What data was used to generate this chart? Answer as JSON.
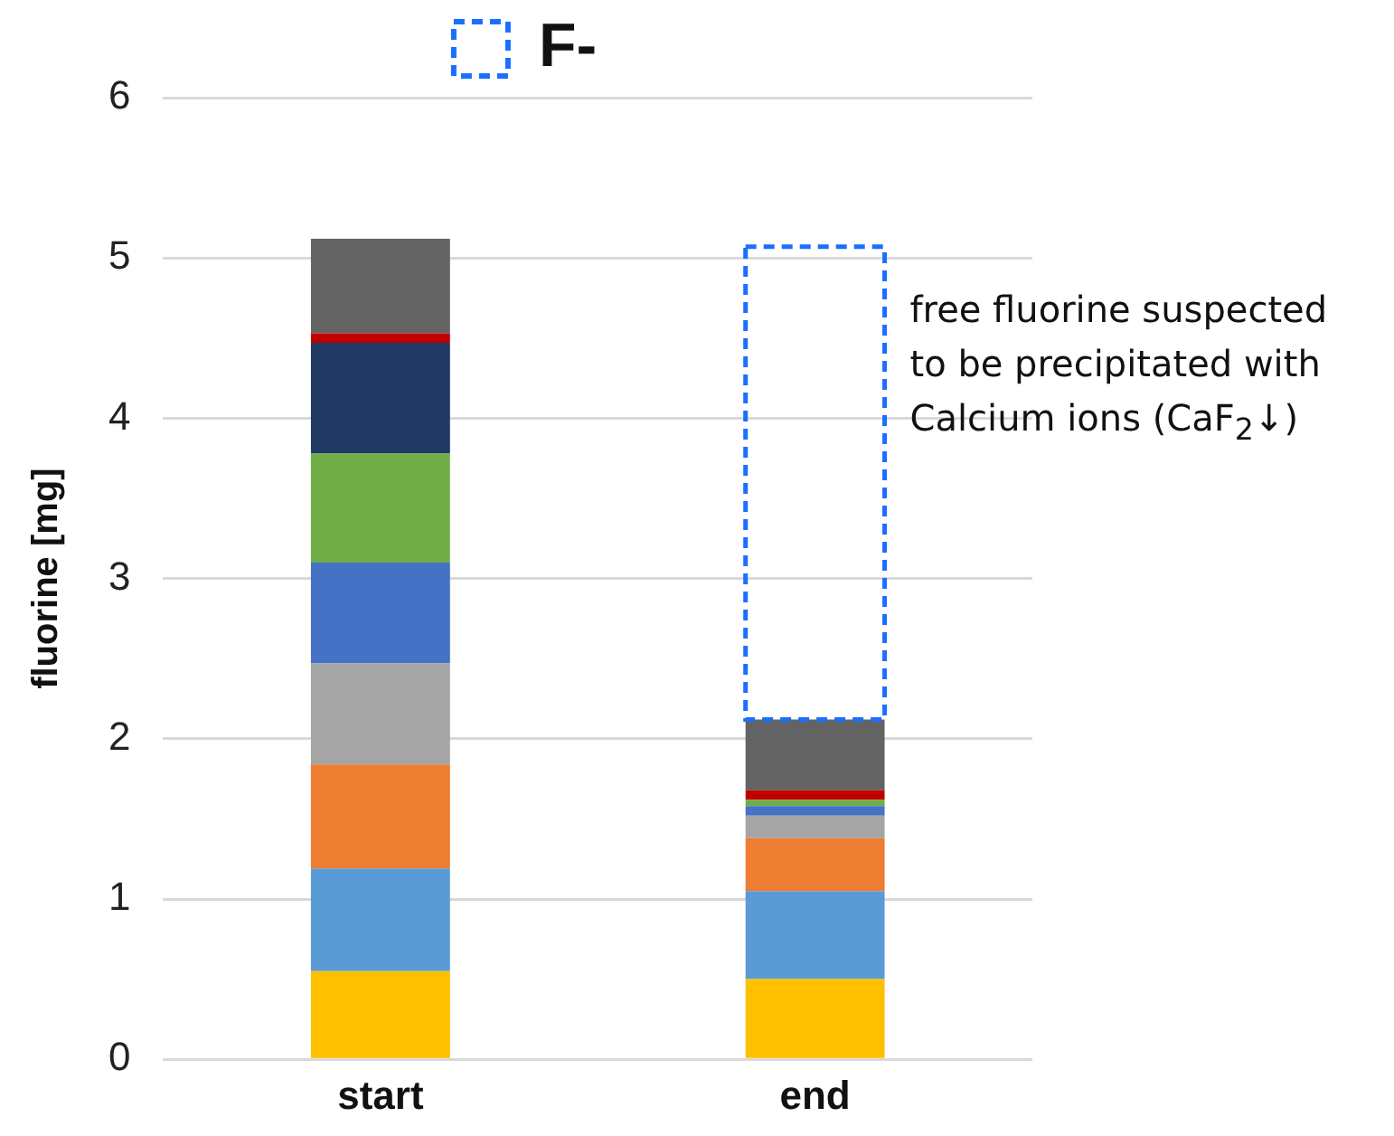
{
  "chart_data": {
    "type": "bar",
    "stacked": true,
    "categories": [
      "start",
      "end"
    ],
    "ylabel": "fluorine [mg]",
    "ylim": [
      0,
      6
    ],
    "yticks": [
      0,
      1,
      2,
      3,
      4,
      5,
      6
    ],
    "grid": "y",
    "legend": "top",
    "series": [
      {
        "color": "#ffc000",
        "values": [
          0.55,
          0.5
        ]
      },
      {
        "color": "#5b9bd5",
        "values": [
          0.64,
          0.55
        ]
      },
      {
        "color": "#ed7d31",
        "values": [
          0.65,
          0.33
        ]
      },
      {
        "color": "#a5a5a5",
        "values": [
          0.63,
          0.14
        ]
      },
      {
        "color": "#4472c4",
        "values": [
          0.63,
          0.06
        ]
      },
      {
        "color": "#70ad47",
        "values": [
          0.68,
          0.04
        ]
      },
      {
        "color": "#203864",
        "values": [
          0.69,
          0
        ]
      },
      {
        "color": "#c00000",
        "values": [
          0.06,
          0.06
        ]
      },
      {
        "color": "#636363",
        "values": [
          0.59,
          0.44
        ]
      },
      {
        "name": "F-",
        "color": "#1a6fff",
        "line_style": "dashed",
        "values": [
          0,
          2.95
        ]
      }
    ],
    "annotations": [
      "free fluorine suspected to be precipitated with Calcium ions (CaF$_{2}$↓)"
    ]
  }
}
